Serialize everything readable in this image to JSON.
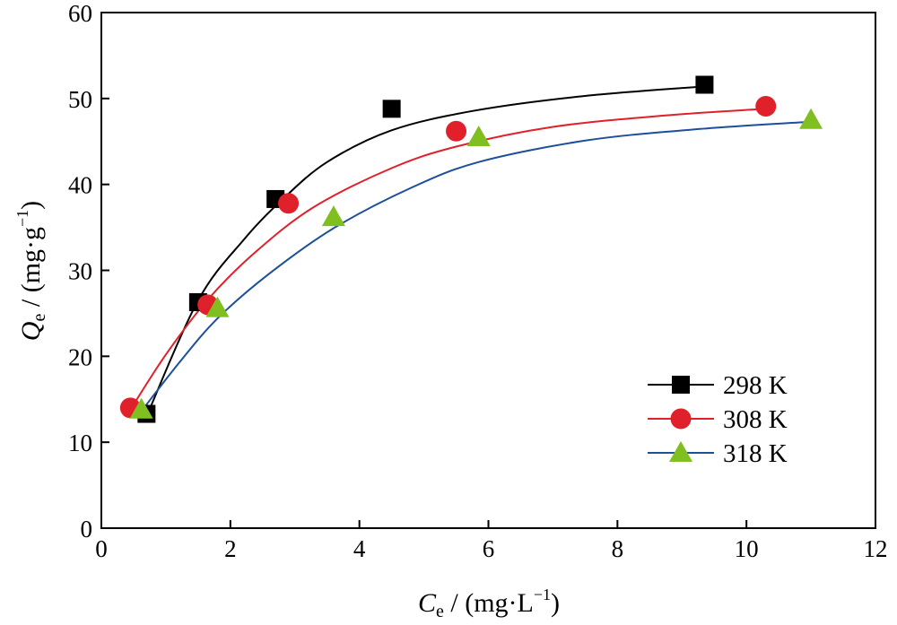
{
  "chart_data": {
    "type": "scatter",
    "title": "",
    "xlabel": {
      "symbol": "C",
      "subscript": "e",
      "rest": " / (mg·L",
      "sup": "−1",
      "close": ")"
    },
    "ylabel": {
      "symbol": "Q",
      "subscript": "e",
      "rest": " / (mg·g",
      "sup": "−1",
      "close": ")"
    },
    "xlim": [
      0,
      12
    ],
    "ylim": [
      0,
      60
    ],
    "xticks": [
      0,
      2,
      4,
      6,
      8,
      10,
      12
    ],
    "yticks": [
      0,
      10,
      20,
      30,
      40,
      50,
      60
    ],
    "grid": false,
    "legend_position": "bottom-right",
    "series": [
      {
        "name": "298 K",
        "marker": "square",
        "color": "#000000",
        "line_color": "#000000",
        "points": [
          [
            0.7,
            13.3
          ],
          [
            1.5,
            26.3
          ],
          [
            2.7,
            38.3
          ],
          [
            4.5,
            48.8
          ],
          [
            9.35,
            51.6
          ]
        ],
        "fit": [
          [
            0.7,
            13.0
          ],
          [
            1.5,
            26.5
          ],
          [
            2.2,
            33.5
          ],
          [
            2.8,
            38.2
          ],
          [
            3.5,
            42.6
          ],
          [
            4.5,
            46.3
          ],
          [
            5.8,
            48.6
          ],
          [
            7.5,
            50.3
          ],
          [
            9.35,
            51.4
          ]
        ]
      },
      {
        "name": "308 K",
        "marker": "circle",
        "color": "#e0202a",
        "line_color": "#e0202a",
        "points": [
          [
            0.45,
            14.0
          ],
          [
            1.65,
            26.0
          ],
          [
            2.9,
            37.8
          ],
          [
            5.5,
            46.2
          ],
          [
            10.3,
            49.1
          ]
        ],
        "fit": [
          [
            0.45,
            13.8
          ],
          [
            1.0,
            20.2
          ],
          [
            1.65,
            26.6
          ],
          [
            2.4,
            32.2
          ],
          [
            3.3,
            37.4
          ],
          [
            4.5,
            41.9
          ],
          [
            5.5,
            44.4
          ],
          [
            7.0,
            46.7
          ],
          [
            8.7,
            48.0
          ],
          [
            10.3,
            48.8
          ]
        ]
      },
      {
        "name": "318 K",
        "marker": "triangle",
        "color": "#7fbf1f",
        "line_color": "#1e4f9a",
        "points": [
          [
            0.62,
            13.8
          ],
          [
            1.8,
            25.6
          ],
          [
            3.6,
            36.2
          ],
          [
            5.85,
            45.5
          ],
          [
            11.0,
            47.5
          ]
        ],
        "fit": [
          [
            0.62,
            13.6
          ],
          [
            1.2,
            19.2
          ],
          [
            1.8,
            24.4
          ],
          [
            2.6,
            29.6
          ],
          [
            3.6,
            34.9
          ],
          [
            4.8,
            39.6
          ],
          [
            5.85,
            42.6
          ],
          [
            7.5,
            45.1
          ],
          [
            9.2,
            46.4
          ],
          [
            11.0,
            47.3
          ]
        ]
      }
    ]
  }
}
